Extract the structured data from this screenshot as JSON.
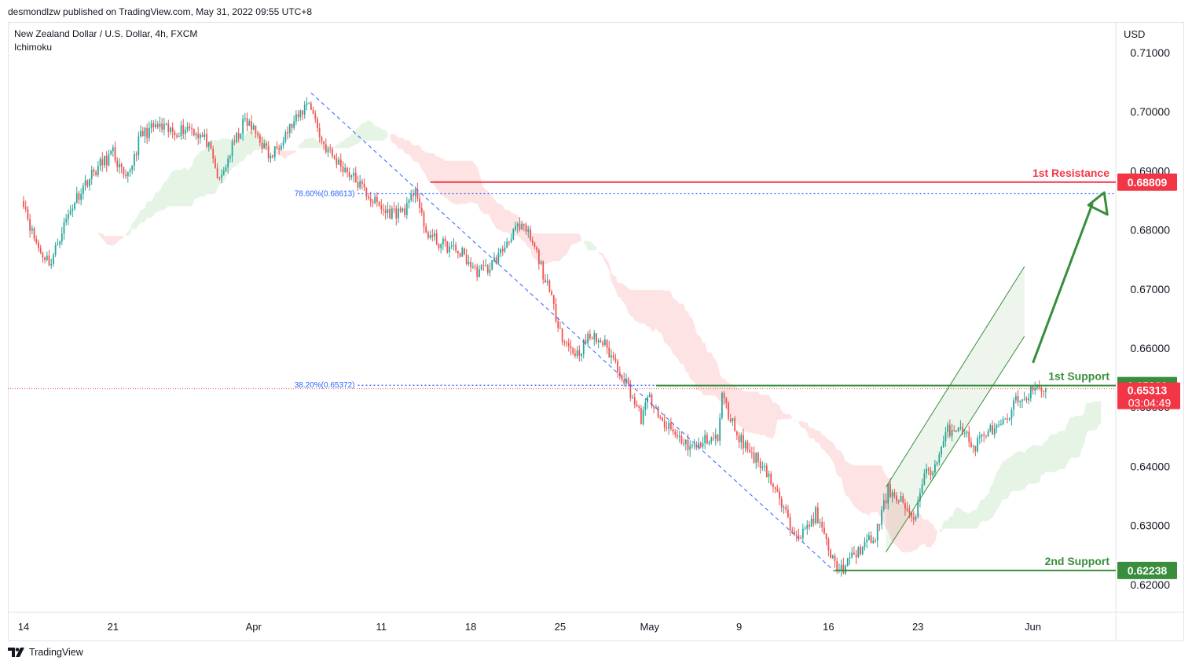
{
  "header": {
    "published": "desmondlzw published on TradingView.com, May 31, 2022 09:55 UTC+8",
    "symbol": "New Zealand Dollar / U.S. Dollar, 4h, FXCM",
    "indicator": "Ichimoku",
    "currency": "USD"
  },
  "footer": {
    "brand": "TradingView"
  },
  "colors": {
    "up": "#26a69a",
    "down": "#ef5350",
    "resistance": "#f23645",
    "support": "#388e3c",
    "cloud_bull": "#e6f4e6",
    "cloud_bear": "#fde3e3",
    "fib": "#2962ff"
  },
  "chart_data": {
    "type": "candlestick",
    "ylim": [
      0.615,
      0.715
    ],
    "y_ticks": [
      "0.71000",
      "0.70000",
      "0.69000",
      "0.68000",
      "0.67000",
      "0.66000",
      "0.65000",
      "0.64000",
      "0.63000",
      "0.62000"
    ],
    "x_ticks": [
      {
        "label": "14",
        "x": 0
      },
      {
        "label": "21",
        "x": 42
      },
      {
        "label": "Apr",
        "x": 108
      },
      {
        "label": "11",
        "x": 168
      },
      {
        "label": "18",
        "x": 210
      },
      {
        "label": "25",
        "x": 252
      },
      {
        "label": "May",
        "x": 294
      },
      {
        "label": "9",
        "x": 336
      },
      {
        "label": "16",
        "x": 378
      },
      {
        "label": "23",
        "x": 420
      },
      {
        "label": "Jun",
        "x": 474
      }
    ],
    "price_path": [
      [
        -3,
        0.6858
      ],
      [
        0,
        0.685
      ],
      [
        4,
        0.6795
      ],
      [
        8,
        0.6762
      ],
      [
        13,
        0.6745
      ],
      [
        18,
        0.68
      ],
      [
        24,
        0.685
      ],
      [
        30,
        0.6885
      ],
      [
        36,
        0.691
      ],
      [
        42,
        0.693
      ],
      [
        48,
        0.688
      ],
      [
        55,
        0.696
      ],
      [
        62,
        0.6975
      ],
      [
        70,
        0.6965
      ],
      [
        78,
        0.6975
      ],
      [
        86,
        0.695
      ],
      [
        92,
        0.688
      ],
      [
        98,
        0.694
      ],
      [
        104,
        0.6985
      ],
      [
        110,
        0.696
      ],
      [
        116,
        0.692
      ],
      [
        122,
        0.696
      ],
      [
        128,
        0.6985
      ],
      [
        134,
        0.702
      ],
      [
        140,
        0.695
      ],
      [
        146,
        0.692
      ],
      [
        152,
        0.69
      ],
      [
        158,
        0.6875
      ],
      [
        164,
        0.685
      ],
      [
        170,
        0.683
      ],
      [
        176,
        0.683
      ],
      [
        181,
        0.684
      ],
      [
        184,
        0.6875
      ],
      [
        188,
        0.68
      ],
      [
        194,
        0.678
      ],
      [
        200,
        0.677
      ],
      [
        206,
        0.676
      ],
      [
        212,
        0.673
      ],
      [
        218,
        0.6735
      ],
      [
        224,
        0.676
      ],
      [
        230,
        0.68
      ],
      [
        236,
        0.68
      ],
      [
        242,
        0.675
      ],
      [
        248,
        0.668
      ],
      [
        254,
        0.661
      ],
      [
        260,
        0.659
      ],
      [
        266,
        0.662
      ],
      [
        272,
        0.661
      ],
      [
        278,
        0.6575
      ],
      [
        284,
        0.6535
      ],
      [
        290,
        0.648
      ],
      [
        294,
        0.652
      ],
      [
        298,
        0.648
      ],
      [
        304,
        0.646
      ],
      [
        310,
        0.644
      ],
      [
        316,
        0.643
      ],
      [
        322,
        0.645
      ],
      [
        326,
        0.6445
      ],
      [
        328,
        0.652
      ],
      [
        332,
        0.648
      ],
      [
        336,
        0.645
      ],
      [
        342,
        0.642
      ],
      [
        348,
        0.64
      ],
      [
        354,
        0.635
      ],
      [
        360,
        0.63
      ],
      [
        366,
        0.6285
      ],
      [
        372,
        0.632
      ],
      [
        376,
        0.628
      ],
      [
        380,
        0.624
      ],
      [
        384,
        0.6225
      ],
      [
        388,
        0.624
      ],
      [
        394,
        0.6265
      ],
      [
        400,
        0.628
      ],
      [
        406,
        0.636
      ],
      [
        412,
        0.6345
      ],
      [
        418,
        0.63
      ],
      [
        422,
        0.638
      ],
      [
        428,
        0.64
      ],
      [
        434,
        0.646
      ],
      [
        440,
        0.647
      ],
      [
        446,
        0.643
      ],
      [
        452,
        0.646
      ],
      [
        456,
        0.646
      ],
      [
        462,
        0.6475
      ],
      [
        466,
        0.651
      ],
      [
        472,
        0.6525
      ],
      [
        476,
        0.6528
      ],
      [
        478,
        0.6535
      ],
      [
        480,
        0.6531
      ]
    ],
    "levels": [
      {
        "name": "1st Resistance",
        "value": 0.68809,
        "label": "0.68809",
        "color": "#f23645"
      },
      {
        "name": "1st Support",
        "value": 0.65366,
        "label": "0.65366",
        "color": "#388e3c"
      },
      {
        "name": "2nd Support",
        "value": 0.62238,
        "label": "0.62238",
        "color": "#388e3c"
      }
    ],
    "current_price": {
      "value": 0.65313,
      "label": "0.65313",
      "countdown": "03:04:49"
    },
    "fibonacci": [
      {
        "label": "78.60%(0.68613)",
        "value": 0.68613
      },
      {
        "label": "38.20%(0.65372)",
        "value": 0.65372
      }
    ],
    "annotations": {
      "projection": "up-arrow"
    }
  }
}
